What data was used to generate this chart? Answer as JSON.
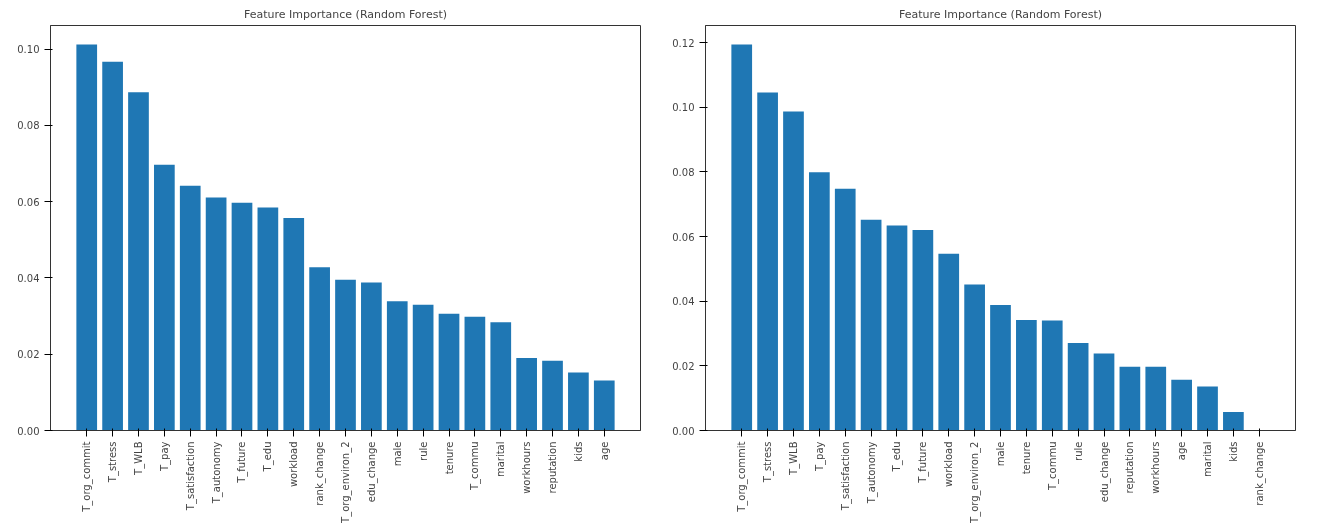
{
  "chart_data": [
    {
      "type": "bar",
      "title": "Feature Importance (Random Forest)",
      "categories": [
        "T_org_commit",
        "T_stress",
        "T_WLB",
        "T_pay",
        "T_satisfaction",
        "T_autonomy",
        "T_future",
        "T_edu",
        "workload",
        "rank_change",
        "T_org_environ_2",
        "edu_change",
        "male",
        "rule",
        "tenure",
        "T_commu",
        "marital",
        "workhours",
        "reputation",
        "kids",
        "age"
      ],
      "values": [
        0.1012,
        0.0967,
        0.0887,
        0.0697,
        0.0642,
        0.0611,
        0.0597,
        0.0585,
        0.0557,
        0.0428,
        0.0395,
        0.0388,
        0.0339,
        0.033,
        0.0306,
        0.0298,
        0.0284,
        0.019,
        0.0183,
        0.0152,
        0.0131
      ],
      "color": "#1f77b4",
      "ylim": [
        0,
        0.1062
      ],
      "yticks": [
        {
          "value": 0,
          "label": "0.00"
        },
        {
          "value": 0.02,
          "label": "0.02"
        },
        {
          "value": 0.04,
          "label": "0.04"
        },
        {
          "value": 0.06,
          "label": "0.06"
        },
        {
          "value": 0.08,
          "label": "0.08"
        },
        {
          "value": 0.1,
          "label": "0.10"
        }
      ],
      "grid": false
    },
    {
      "type": "bar",
      "title": "Feature Importance (Random Forest)",
      "categories": [
        "T_org_commit",
        "T_stress",
        "T_WLB",
        "T_pay",
        "T_satisfaction",
        "T_autonomy",
        "T_edu",
        "T_future",
        "workload",
        "T_org_environ_2",
        "male",
        "tenure",
        "T_commu",
        "rule",
        "edu_change",
        "reputation",
        "workhours",
        "age",
        "marital",
        "kids",
        "rank_change"
      ],
      "values": [
        0.1194,
        0.1046,
        0.0987,
        0.0799,
        0.0748,
        0.0652,
        0.0634,
        0.062,
        0.0547,
        0.0452,
        0.0388,
        0.0342,
        0.034,
        0.0271,
        0.0238,
        0.0197,
        0.0197,
        0.0157,
        0.0136,
        0.0057,
        0
      ],
      "color": "#1f77b4",
      "ylim": [
        0,
        0.1253
      ],
      "yticks": [
        {
          "value": 0,
          "label": "0.00"
        },
        {
          "value": 0.02,
          "label": "0.02"
        },
        {
          "value": 0.04,
          "label": "0.04"
        },
        {
          "value": 0.06,
          "label": "0.06"
        },
        {
          "value": 0.08,
          "label": "0.08"
        },
        {
          "value": 0.1,
          "label": "0.10"
        },
        {
          "value": 0.12,
          "label": "0.12"
        }
      ],
      "grid": false
    }
  ]
}
